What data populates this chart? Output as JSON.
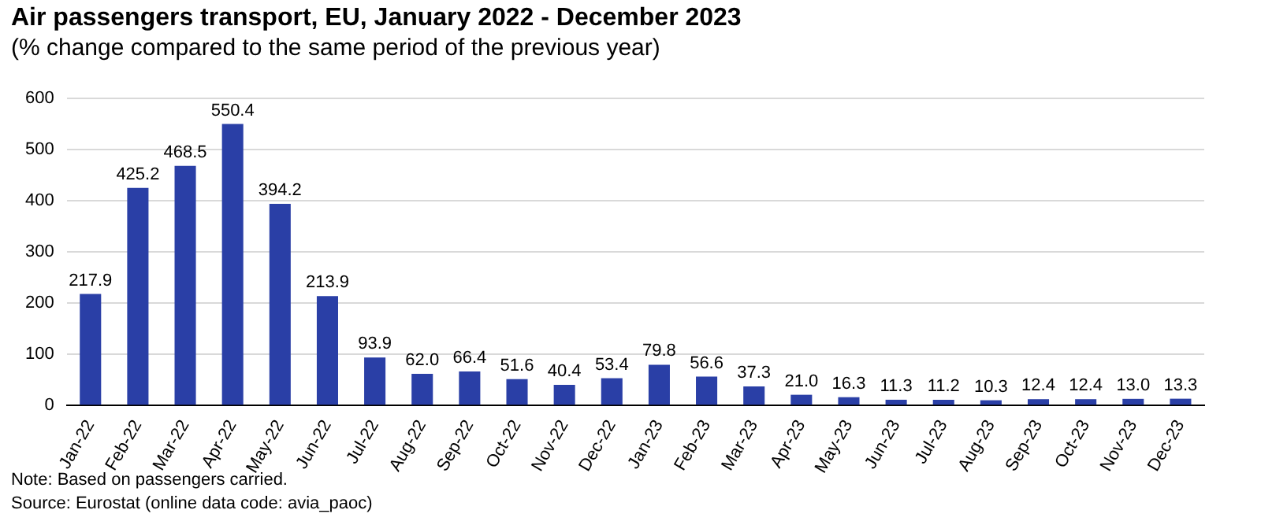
{
  "chart_data": {
    "type": "bar",
    "title": "Air passengers transport, EU, January 2022 - December 2023",
    "subtitle": "(% change compared to the same period of the previous year)",
    "categories": [
      "Jan-22",
      "Feb-22",
      "Mar-22",
      "Apr-22",
      "May-22",
      "Jun-22",
      "Jul-22",
      "Aug-22",
      "Sep-22",
      "Oct-22",
      "Nov-22",
      "Dec-22",
      "Jan-23",
      "Feb-23",
      "Mar-23",
      "Apr-23",
      "May-23",
      "Jun-23",
      "Jul-23",
      "Aug-23",
      "Sep-23",
      "Oct-23",
      "Nov-23",
      "Dec-23"
    ],
    "values": [
      217.9,
      425.2,
      468.5,
      550.4,
      394.2,
      213.9,
      93.9,
      62.0,
      66.4,
      51.6,
      40.4,
      53.4,
      79.8,
      56.6,
      37.3,
      21.0,
      16.3,
      11.3,
      11.2,
      10.3,
      12.4,
      12.4,
      13.0,
      13.3
    ],
    "value_labels": [
      "217.9",
      "425.2",
      "468.5",
      "550.4",
      "394.2",
      "213.9",
      "93.9",
      "62.0",
      "66.4",
      "51.6",
      "40.4",
      "53.4",
      "79.8",
      "56.6",
      "37.3",
      "21.0",
      "16.3",
      "11.3",
      "11.2",
      "10.3",
      "12.4",
      "12.4",
      "13.0",
      "13.3"
    ],
    "color": "#2a3fa6",
    "ylim": [
      0,
      600
    ],
    "yticks": [
      0,
      100,
      200,
      300,
      400,
      500,
      600
    ],
    "grid": "y",
    "annotations": [
      "Note: Based on passengers carried.",
      "Source: Eurostat (online data code: avia_paoc)"
    ]
  }
}
